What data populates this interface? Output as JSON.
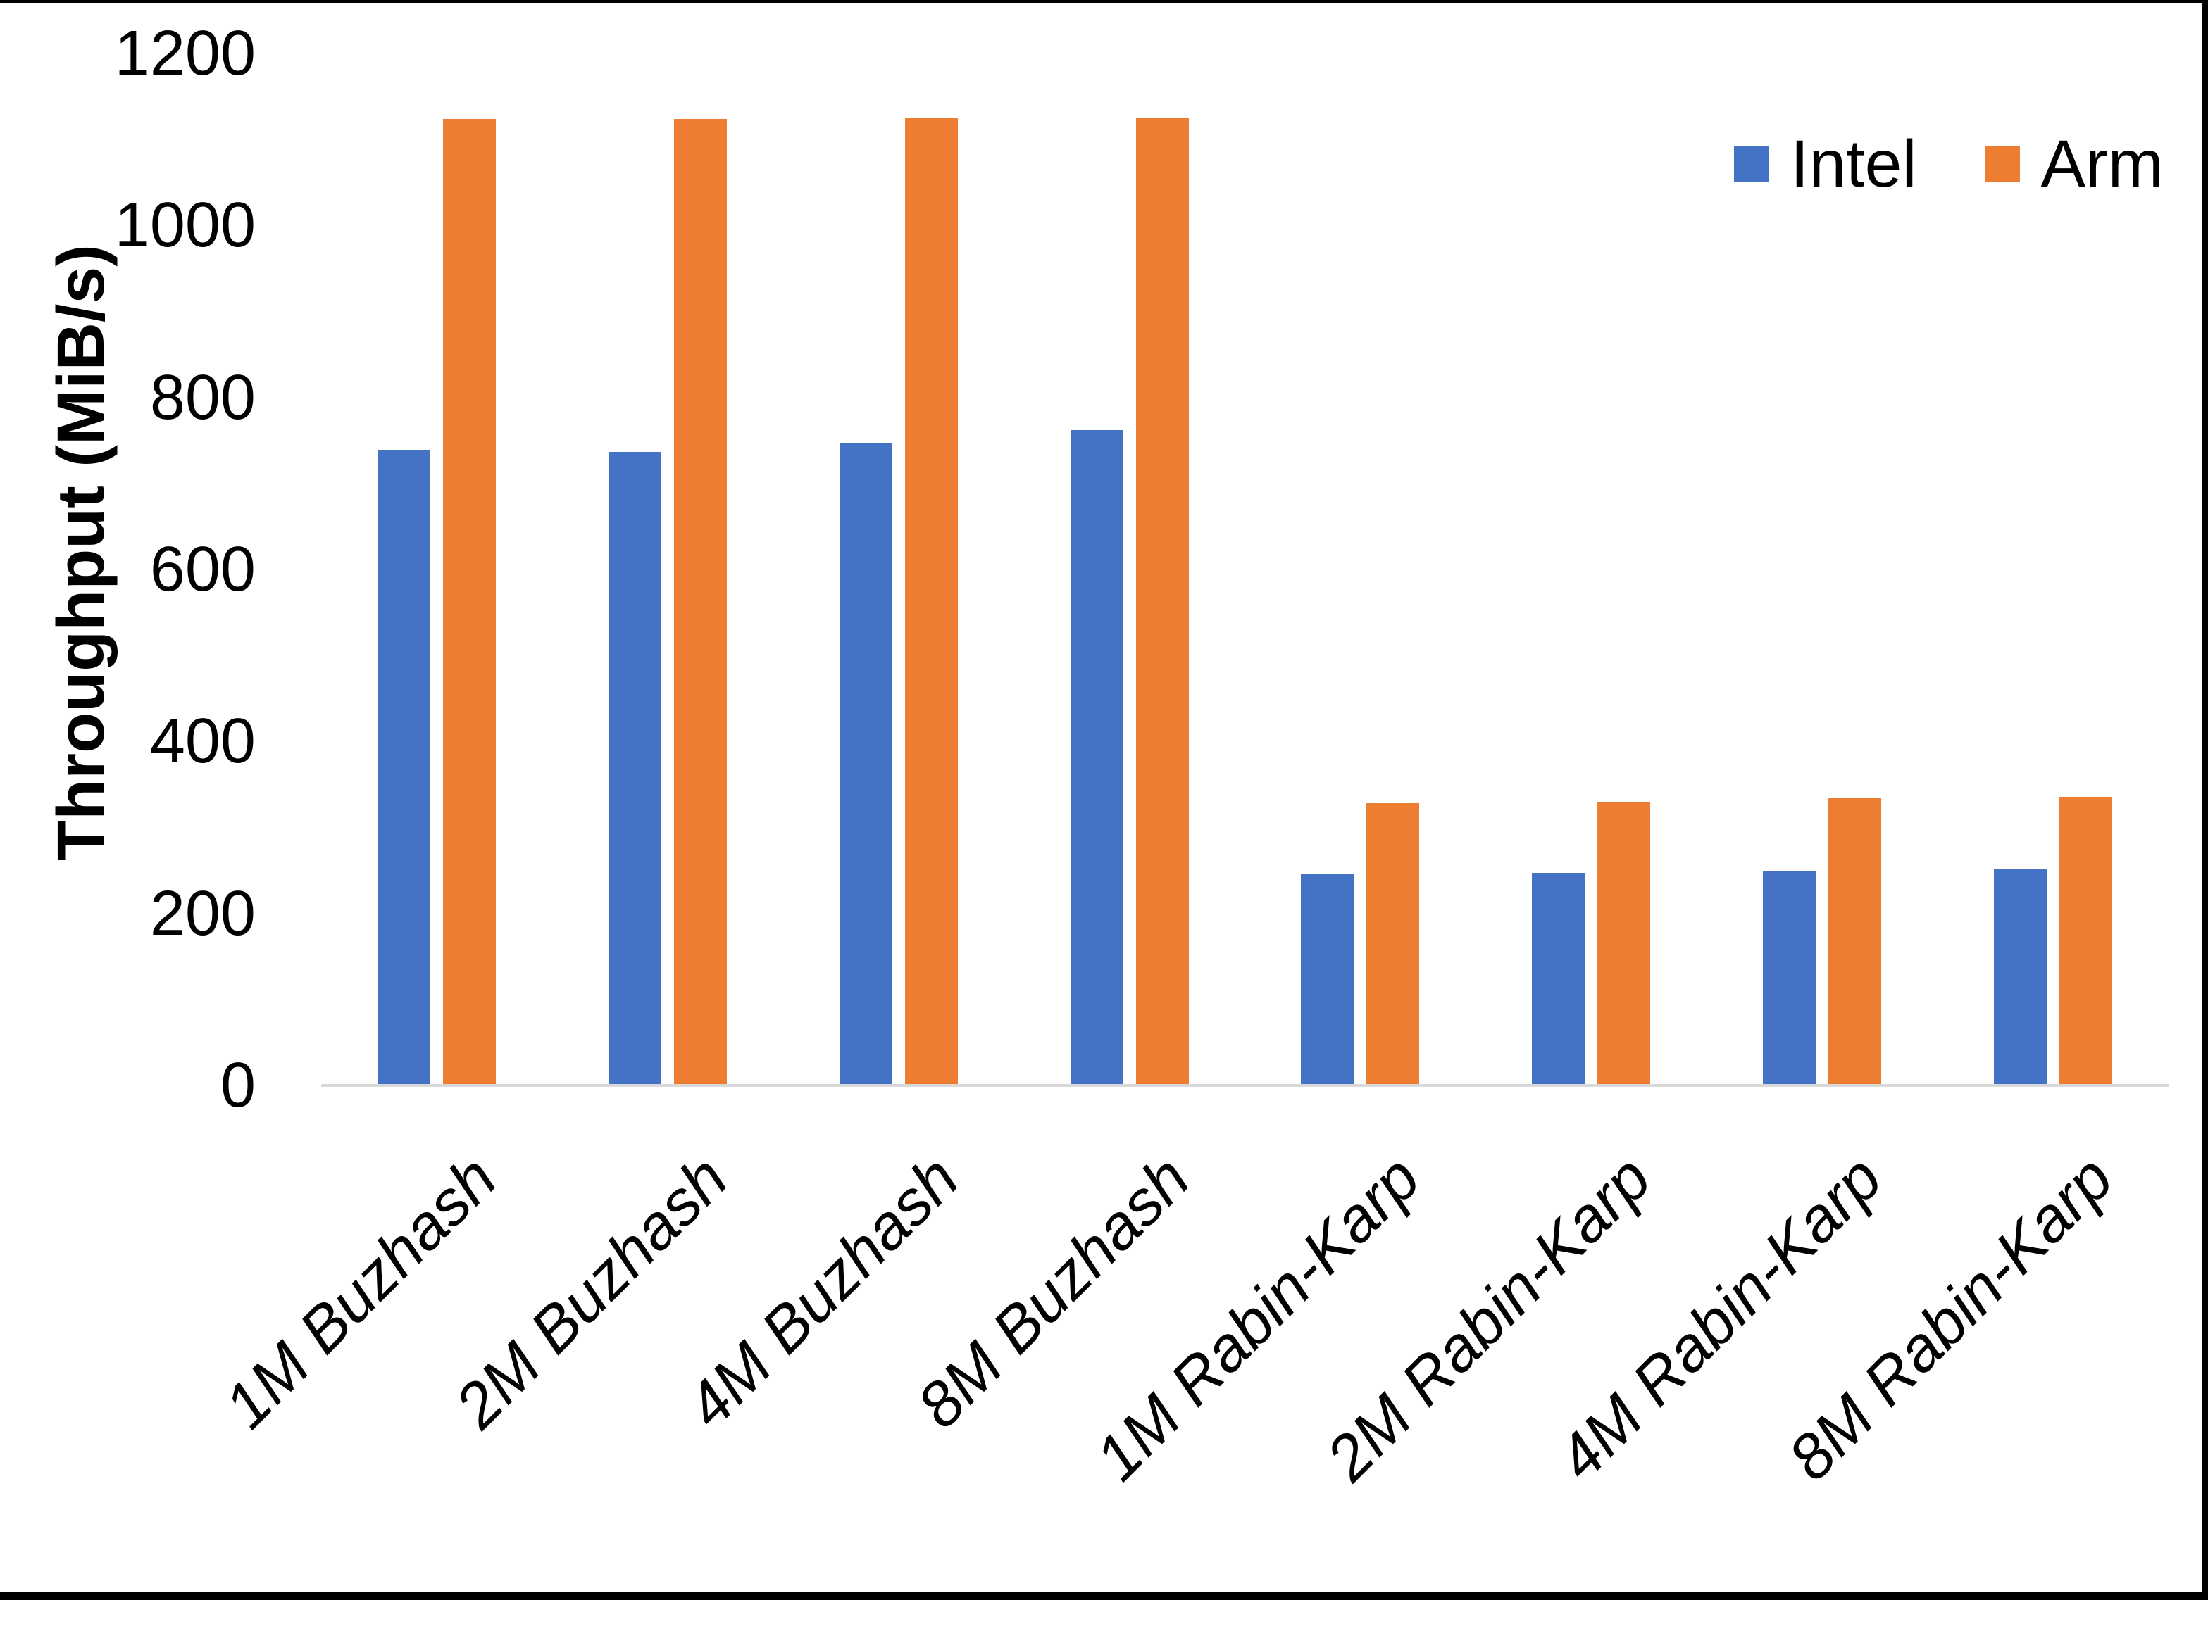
{
  "chart_data": {
    "type": "bar",
    "title": "",
    "xlabel": "",
    "ylabel": "Throughput (MiB/s)",
    "categories": [
      "1M Buzhash",
      "2M Buzhash",
      "4M Buzhash",
      "8M Buzhash",
      "1M Rabin-Karp",
      "2M Rabin-Karp",
      "4M Rabin-Karp",
      "8M Rabin-Karp"
    ],
    "series": [
      {
        "name": "Intel",
        "color": "#4472C4",
        "values": [
          739,
          737,
          747,
          762,
          246,
          247,
          250,
          251
        ]
      },
      {
        "name": "Arm",
        "color": "#ED7D31",
        "values": [
          1124,
          1124,
          1125,
          1125,
          328,
          330,
          334,
          336
        ]
      }
    ],
    "ylim": [
      0,
      1200
    ],
    "yticks": [
      0,
      200,
      400,
      600,
      800,
      1000,
      1200
    ],
    "grid": "off",
    "legend_position": "top-right",
    "axis_line_color": "#D9D9D9",
    "text_color": "#000000",
    "frame_color": "#000000"
  }
}
